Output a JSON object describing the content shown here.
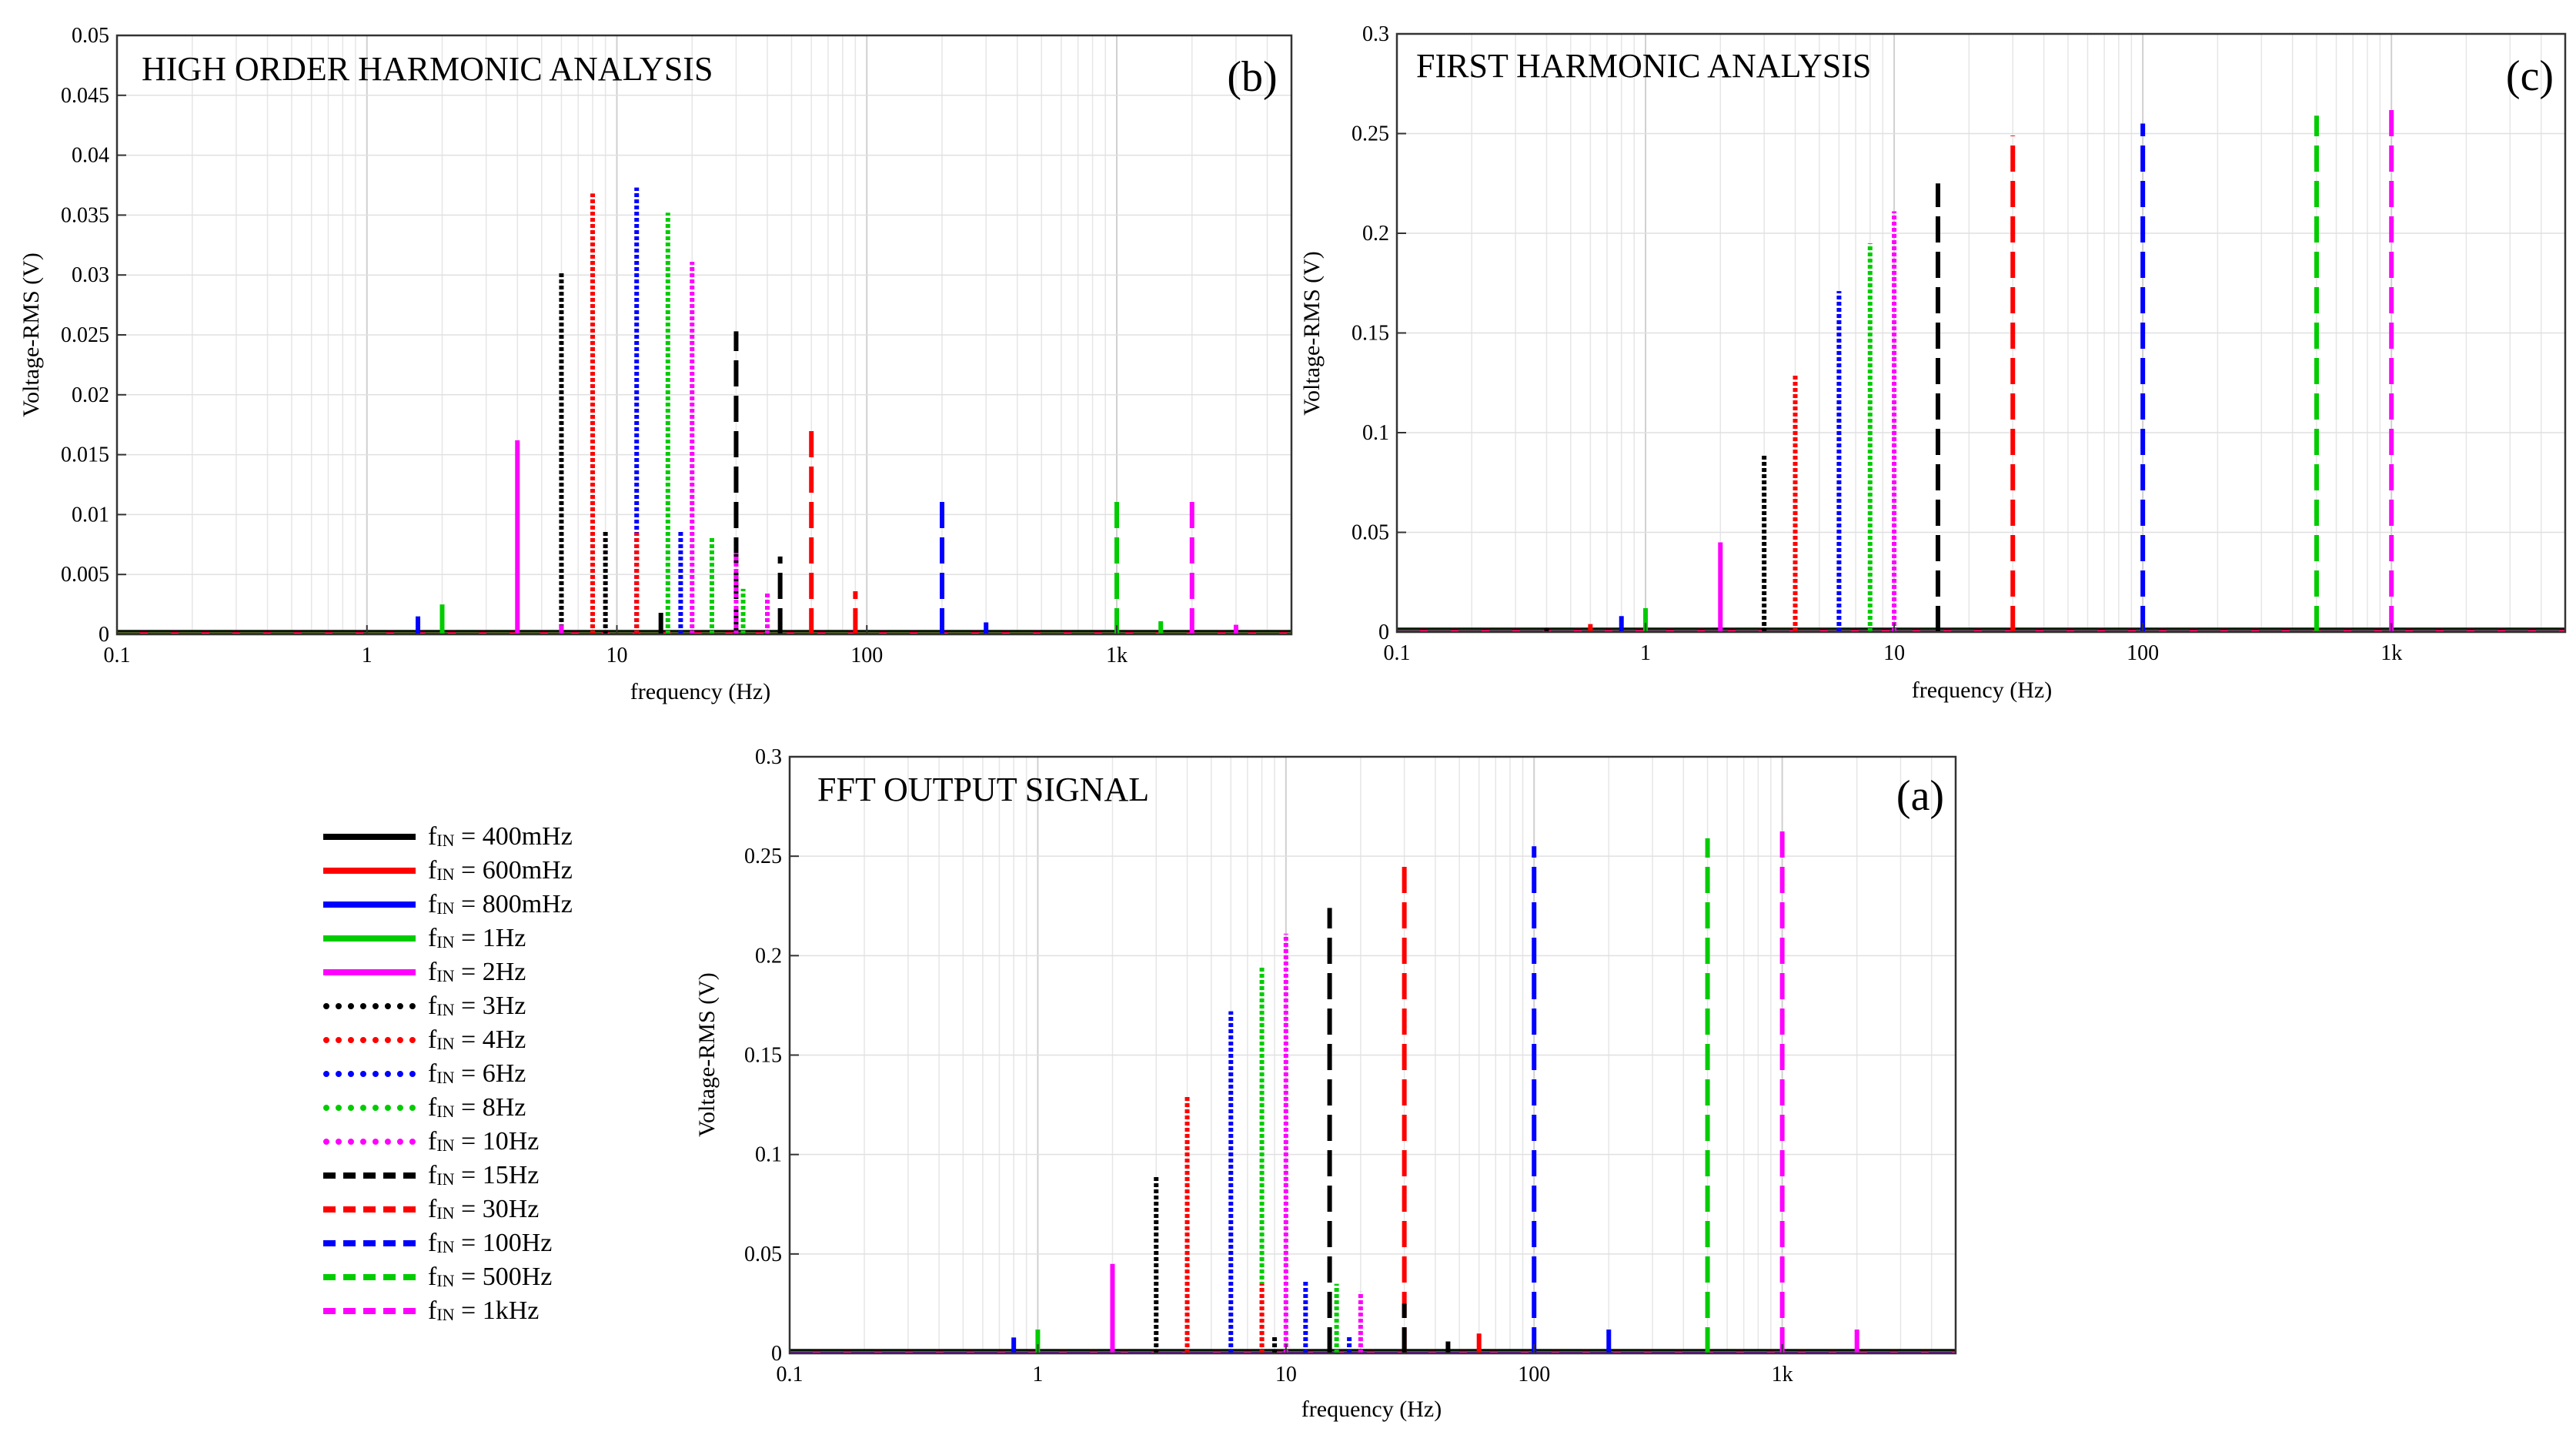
{
  "legend_prefix": "f",
  "legend_sub": "IN",
  "series": [
    {
      "key": "s400m",
      "label": "= 400mHz",
      "f": 0.4,
      "color": "#000000",
      "dash": "solid",
      "amp": 0.0,
      "h1": 0.0
    },
    {
      "key": "s600m",
      "label": "= 600mHz",
      "f": 0.6,
      "color": "#ff0000",
      "dash": "solid",
      "amp": 0.0,
      "h1": 0.0
    },
    {
      "key": "s800m",
      "label": "= 800mHz",
      "f": 0.8,
      "color": "#0000ff",
      "dash": "solid",
      "amp": 0.007,
      "h1": 0.008
    },
    {
      "key": "s1",
      "label": "= 1Hz",
      "f": 1,
      "color": "#00cc00",
      "dash": "solid",
      "amp": 0.012,
      "h1": 0.012
    },
    {
      "key": "s2",
      "label": "= 2Hz",
      "f": 2,
      "color": "#ff00ff",
      "dash": "solid",
      "amp": 0.045,
      "h1": 0.045
    },
    {
      "key": "s3",
      "label": "= 3Hz",
      "f": 3,
      "color": "#000000",
      "dash": "dotted",
      "amp": 0.089,
      "h1": 0.089
    },
    {
      "key": "s4",
      "label": "= 4Hz",
      "f": 4,
      "color": "#ff0000",
      "dash": "dotted",
      "amp": 0.129,
      "h1": 0.129
    },
    {
      "key": "s6",
      "label": "= 6Hz",
      "f": 6,
      "color": "#0000ff",
      "dash": "dotted",
      "amp": 0.172,
      "h1": 0.172
    },
    {
      "key": "s8",
      "label": "= 8Hz",
      "f": 8,
      "color": "#00cc00",
      "dash": "dotted",
      "amp": 0.195,
      "h1": 0.195
    },
    {
      "key": "s10",
      "label": "= 10Hz",
      "f": 10,
      "color": "#ff00ff",
      "dash": "dotted",
      "amp": 0.211,
      "h1": 0.211
    },
    {
      "key": "s15",
      "label": "= 15Hz",
      "f": 15,
      "color": "#000000",
      "dash": "dashed",
      "amp": 0.224,
      "h1": 0.225
    },
    {
      "key": "s30",
      "label": "= 30Hz",
      "f": 30,
      "color": "#ff0000",
      "dash": "dashed",
      "amp": 0.249,
      "h1": 0.249
    },
    {
      "key": "s100",
      "label": "= 100Hz",
      "f": 100,
      "color": "#0000ff",
      "dash": "dashed",
      "amp": 0.255,
      "h1": 0.255
    },
    {
      "key": "s500",
      "label": "= 500Hz",
      "f": 500,
      "color": "#00cc00",
      "dash": "dashed",
      "amp": 0.259,
      "h1": 0.259
    },
    {
      "key": "s1k",
      "label": "= 1kHz",
      "f": 1000,
      "color": "#ff00ff",
      "dash": "dashed",
      "amp": 0.265,
      "h1": 0.265
    }
  ],
  "chart_data": [
    {
      "id": "a",
      "type": "line",
      "title": "FFT OUTPUT SIGNAL",
      "panel_tag": "(a)",
      "xlabel": "frequency (Hz)",
      "ylabel": "Voltage-RMS (V)",
      "xscale": "log",
      "xlim": [
        0.1,
        5000
      ],
      "ylim": [
        0,
        0.3
      ],
      "xticks": [
        0.1,
        1,
        10,
        100,
        1000
      ],
      "xticklabels": [
        "0.1",
        "1",
        "10",
        "100",
        "1k"
      ],
      "yticks": [
        0,
        0.05,
        0.1,
        0.15,
        0.2,
        0.25,
        0.3
      ],
      "yticklabels": [
        "0",
        "0.05",
        "0.1",
        "0.15",
        "0.2",
        "0.25",
        "0.3"
      ],
      "peaks": [
        {
          "series": "s800m",
          "x": 0.8,
          "y": 0.008
        },
        {
          "series": "s1",
          "x": 1,
          "y": 0.012
        },
        {
          "series": "s2",
          "x": 2,
          "y": 0.045
        },
        {
          "series": "s3",
          "x": 3,
          "y": 0.089
        },
        {
          "series": "s4",
          "x": 4,
          "y": 0.129
        },
        {
          "series": "s6",
          "x": 6,
          "y": 0.172
        },
        {
          "series": "s8",
          "x": 8,
          "y": 0.195
        },
        {
          "series": "s10",
          "x": 10,
          "y": 0.211
        },
        {
          "series": "s15",
          "x": 15,
          "y": 0.224
        },
        {
          "series": "s30",
          "x": 30,
          "y": 0.249
        },
        {
          "series": "s100",
          "x": 100,
          "y": 0.255
        },
        {
          "series": "s500",
          "x": 500,
          "y": 0.259
        },
        {
          "series": "s1k",
          "x": 1000,
          "y": 0.265
        },
        {
          "series": "s4",
          "x": 8,
          "y": 0.035
        },
        {
          "series": "s6",
          "x": 12,
          "y": 0.037
        },
        {
          "series": "s8",
          "x": 16,
          "y": 0.035
        },
        {
          "series": "s10",
          "x": 20,
          "y": 0.031
        },
        {
          "series": "s15",
          "x": 30,
          "y": 0.025
        },
        {
          "series": "s30",
          "x": 60,
          "y": 0.01
        },
        {
          "series": "s100",
          "x": 200,
          "y": 0.012
        },
        {
          "series": "s1k",
          "x": 2000,
          "y": 0.012
        },
        {
          "series": "s6",
          "x": 18,
          "y": 0.009
        },
        {
          "series": "s3",
          "x": 9,
          "y": 0.009
        },
        {
          "series": "s15",
          "x": 45,
          "y": 0.006
        }
      ]
    },
    {
      "id": "b",
      "type": "line",
      "title": "HIGH ORDER HARMONIC ANALYSIS",
      "panel_tag": "(b)",
      "xlabel": "frequency (Hz)",
      "ylabel": "Voltage-RMS (V)",
      "xscale": "log",
      "xlim": [
        0.1,
        5000
      ],
      "ylim": [
        0,
        0.05
      ],
      "xticks": [
        0.1,
        1,
        10,
        100,
        1000
      ],
      "xticklabels": [
        "0.1",
        "1",
        "10",
        "100",
        "1k"
      ],
      "yticks": [
        0,
        0.005,
        0.01,
        0.015,
        0.02,
        0.025,
        0.03,
        0.035,
        0.04,
        0.045,
        0.05
      ],
      "yticklabels": [
        "0",
        "0.005",
        "0.01",
        "0.015",
        "0.02",
        "0.025",
        "0.03",
        "0.035",
        "0.04",
        "0.045",
        "0.05"
      ],
      "peaks": [
        {
          "series": "s800m",
          "x": 1.6,
          "y": 0.0015
        },
        {
          "series": "s1",
          "x": 2,
          "y": 0.0025
        },
        {
          "series": "s2",
          "x": 4,
          "y": 0.0162
        },
        {
          "series": "s3",
          "x": 6,
          "y": 0.0303
        },
        {
          "series": "s4",
          "x": 8,
          "y": 0.0368
        },
        {
          "series": "s6",
          "x": 12,
          "y": 0.0373
        },
        {
          "series": "s8",
          "x": 16,
          "y": 0.0352
        },
        {
          "series": "s10",
          "x": 20,
          "y": 0.0311
        },
        {
          "series": "s15",
          "x": 30,
          "y": 0.0253
        },
        {
          "series": "s30",
          "x": 60,
          "y": 0.017
        },
        {
          "series": "s100",
          "x": 200,
          "y": 0.0118
        },
        {
          "series": "s500",
          "x": 1000,
          "y": 0.0116
        },
        {
          "series": "s1k",
          "x": 2000,
          "y": 0.0117
        },
        {
          "series": "s3",
          "x": 9,
          "y": 0.0087
        },
        {
          "series": "s4",
          "x": 12,
          "y": 0.0085
        },
        {
          "series": "s6",
          "x": 18,
          "y": 0.0087
        },
        {
          "series": "s8",
          "x": 24,
          "y": 0.0081
        },
        {
          "series": "s10",
          "x": 30,
          "y": 0.0068
        },
        {
          "series": "s15",
          "x": 45,
          "y": 0.0065
        },
        {
          "series": "s30",
          "x": 90,
          "y": 0.0036
        },
        {
          "series": "s100",
          "x": 300,
          "y": 0.001
        },
        {
          "series": "s500",
          "x": 1500,
          "y": 0.0011
        },
        {
          "series": "s1k",
          "x": 3000,
          "y": 0.0008
        },
        {
          "series": "s3",
          "x": 6,
          "y": 0.0058
        },
        {
          "series": "s2",
          "x": 6,
          "y": 0.0008
        },
        {
          "series": "s15",
          "x": 15,
          "y": 0.0018
        },
        {
          "series": "s10",
          "x": 40,
          "y": 0.0036
        },
        {
          "series": "s8",
          "x": 32,
          "y": 0.0038
        }
      ]
    },
    {
      "id": "c",
      "type": "line",
      "title": "FIRST HARMONIC ANALYSIS",
      "panel_tag": "(c)",
      "xlabel": "frequency (Hz)",
      "ylabel": "Voltage-RMS (V)",
      "xscale": "log",
      "xlim": [
        0.1,
        5000
      ],
      "ylim": [
        0,
        0.3
      ],
      "xticks": [
        0.1,
        1,
        10,
        100,
        1000
      ],
      "xticklabels": [
        "0.1",
        "1",
        "10",
        "100",
        "1k"
      ],
      "yticks": [
        0,
        0.05,
        0.1,
        0.15,
        0.2,
        0.25,
        0.3
      ],
      "yticklabels": [
        "0",
        "0.05",
        "0.1",
        "0.15",
        "0.2",
        "0.25",
        "0.3"
      ],
      "peaks": [
        {
          "series": "s400m",
          "x": 0.4,
          "y": 0.002
        },
        {
          "series": "s600m",
          "x": 0.6,
          "y": 0.004
        },
        {
          "series": "s800m",
          "x": 0.8,
          "y": 0.008
        },
        {
          "series": "s1",
          "x": 1,
          "y": 0.012
        },
        {
          "series": "s2",
          "x": 2,
          "y": 0.045
        },
        {
          "series": "s3",
          "x": 3,
          "y": 0.089
        },
        {
          "series": "s4",
          "x": 4,
          "y": 0.129
        },
        {
          "series": "s6",
          "x": 6,
          "y": 0.171
        },
        {
          "series": "s8",
          "x": 8,
          "y": 0.195
        },
        {
          "series": "s10",
          "x": 10,
          "y": 0.211
        },
        {
          "series": "s15",
          "x": 15,
          "y": 0.225
        },
        {
          "series": "s30",
          "x": 30,
          "y": 0.249
        },
        {
          "series": "s100",
          "x": 100,
          "y": 0.255
        },
        {
          "series": "s500",
          "x": 500,
          "y": 0.259
        },
        {
          "series": "s1k",
          "x": 1000,
          "y": 0.265
        }
      ]
    }
  ]
}
